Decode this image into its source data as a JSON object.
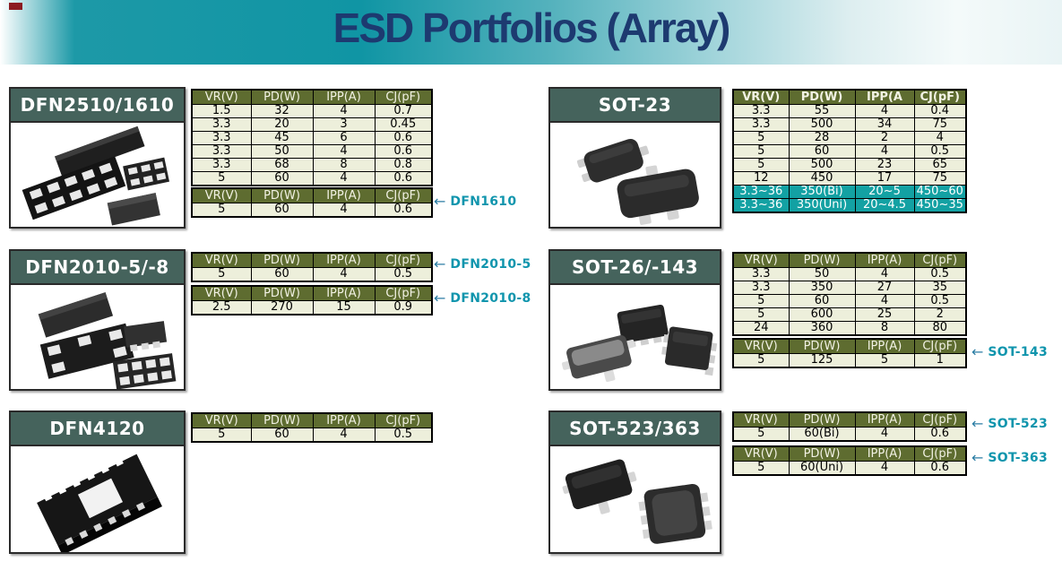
{
  "page": {
    "title": "ESD Portfolios (Array)"
  },
  "colors": {
    "banner_teal": "#1095a4",
    "title_navy": "#1d3a70",
    "panel_header_green": "#45635c",
    "table_header_olive": "#5e6c30",
    "table_row_cream": "#edefdb",
    "highlight_teal": "#13a1a3",
    "callout_teal": "#1095ad",
    "corner_mark_red": "#8c1b21"
  },
  "panels": [
    {
      "title": "DFN2510/1610"
    },
    {
      "title": "DFN2010-5/-8"
    },
    {
      "title": "DFN4120"
    },
    {
      "title": "SOT-23"
    },
    {
      "title": "SOT-26/-143"
    },
    {
      "title": "SOT-523/363"
    }
  ],
  "tables": {
    "dfn2510": {
      "headers": [
        "VR(V)",
        "PD(W)",
        "IPP(A)",
        "CJ(pF)"
      ],
      "rows": [
        [
          "1.5",
          "32",
          "4",
          "0.7"
        ],
        [
          "3.3",
          "20",
          "3",
          "0.45"
        ],
        [
          "3.3",
          "45",
          "6",
          "0.6"
        ],
        [
          "3.3",
          "50",
          "4",
          "0.6"
        ],
        [
          "3.3",
          "68",
          "8",
          "0.8"
        ],
        [
          "5",
          "60",
          "4",
          "0.6"
        ]
      ]
    },
    "dfn1610": {
      "headers": [
        "VR(V)",
        "PD(W)",
        "IPP(A)",
        "CJ(pF)"
      ],
      "rows": [
        [
          "5",
          "60",
          "4",
          "0.6"
        ]
      ]
    },
    "dfn2010_5": {
      "headers": [
        "VR(V)",
        "PD(W)",
        "IPP(A)",
        "CJ(pF)"
      ],
      "rows": [
        [
          "5",
          "60",
          "4",
          "0.5"
        ]
      ]
    },
    "dfn2010_8": {
      "headers": [
        "VR(V)",
        "PD(W)",
        "IPP(A)",
        "CJ(pF)"
      ],
      "rows": [
        [
          "2.5",
          "270",
          "15",
          "0.9"
        ]
      ]
    },
    "dfn4120": {
      "headers": [
        "VR(V)",
        "PD(W)",
        "IPP(A)",
        "CJ(pF)"
      ],
      "rows": [
        [
          "5",
          "60",
          "4",
          "0.5"
        ]
      ]
    },
    "sot23": {
      "headers": [
        "VR(V)",
        "PD(W)",
        "IPP(A",
        "CJ(pF)"
      ],
      "rows": [
        [
          "3.3",
          "55",
          "4",
          "0.4"
        ],
        [
          "3.3",
          "500",
          "34",
          "75"
        ],
        [
          "5",
          "28",
          "2",
          "4"
        ],
        [
          "5",
          "60",
          "4",
          "0.5"
        ],
        [
          "5",
          "500",
          "23",
          "65"
        ],
        [
          "12",
          "450",
          "17",
          "75"
        ],
        [
          "3.3~36",
          "350(Bi)",
          "20~5",
          "450~60"
        ],
        [
          "3.3~36",
          "350(Uni)",
          "20~4.5",
          "450~35"
        ]
      ],
      "highlight_rows": [
        6,
        7
      ]
    },
    "sot26": {
      "headers": [
        "VR(V)",
        "PD(W)",
        "IPP(A)",
        "CJ(pF)"
      ],
      "rows": [
        [
          "3.3",
          "50",
          "4",
          "0.5"
        ],
        [
          "3.3",
          "350",
          "27",
          "35"
        ],
        [
          "5",
          "60",
          "4",
          "0.5"
        ],
        [
          "5",
          "600",
          "25",
          "2"
        ],
        [
          "24",
          "360",
          "8",
          "80"
        ]
      ]
    },
    "sot143": {
      "headers": [
        "VR(V)",
        "PD(W)",
        "IPP(A)",
        "CJ(pF)"
      ],
      "rows": [
        [
          "5",
          "125",
          "5",
          "1"
        ]
      ]
    },
    "sot523": {
      "headers": [
        "VR(V)",
        "PD(W)",
        "IPP(A)",
        "CJ(pF)"
      ],
      "rows": [
        [
          "5",
          "60(Bi)",
          "4",
          "0.6"
        ]
      ]
    },
    "sot363": {
      "headers": [
        "VR(V)",
        "PD(W)",
        "IPP(A)",
        "CJ(pF)"
      ],
      "rows": [
        [
          "5",
          "60(Uni)",
          "4",
          "0.6"
        ]
      ]
    }
  },
  "callouts": [
    {
      "arrow": "←",
      "label": "DFN1610"
    },
    {
      "arrow": "←",
      "label": "DFN2010-5"
    },
    {
      "arrow": "←",
      "label": "DFN2010-8"
    },
    {
      "arrow": "←",
      "label": "SOT-143"
    },
    {
      "arrow": "←",
      "label": "SOT-523"
    },
    {
      "arrow": "←",
      "label": "SOT-363"
    }
  ]
}
